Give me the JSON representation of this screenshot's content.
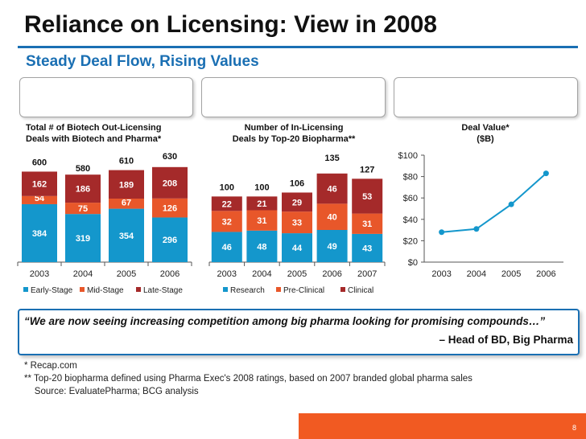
{
  "page": {
    "title": "Reliance on Licensing: View in 2008",
    "subtitle": "Steady Deal Flow, Rising Values",
    "quote": {
      "text": "We are now seeing increasing competition among big pharma looking for promising compounds…",
      "open_mark": "“",
      "close_mark": "”",
      "attribution": "– Head of BD, Big Pharma"
    },
    "footnotes": [
      "*  Recap.com",
      "** Top-20 biopharma defined using Pharma Exec's 2008 ratings, based on 2007 branded global pharma sales",
      "    Source: EvaluatePharma; BCG analysis"
    ],
    "page_number": "8"
  },
  "colors": {
    "early": "#1497cc",
    "mid": "#e8572a",
    "late": "#a52a2a",
    "line": "#1497cc",
    "accent_blue": "#1a6fb3",
    "orange": "#f15a22"
  },
  "chart_data": [
    {
      "type": "bar",
      "stacked": true,
      "title_lines": [
        "Total # of Biotech Out-Licensing",
        "Deals with Biotech and Pharma*"
      ],
      "categories": [
        "2003",
        "2004",
        "2005",
        "2006"
      ],
      "series": [
        {
          "name": "Early-Stage",
          "values": [
            384,
            319,
            354,
            296
          ]
        },
        {
          "name": "Mid-Stage",
          "values": [
            54,
            75,
            67,
            126
          ]
        },
        {
          "name": "Late-Stage",
          "values": [
            162,
            186,
            189,
            208
          ]
        }
      ],
      "totals": [
        600,
        580,
        610,
        630
      ]
    },
    {
      "type": "bar",
      "stacked": true,
      "title_lines": [
        "Number of In-Licensing",
        "Deals by Top-20 Biopharma**"
      ],
      "categories": [
        "2003",
        "2004",
        "2005",
        "2006",
        "2007"
      ],
      "series": [
        {
          "name": "Research",
          "values": [
            46,
            48,
            44,
            49,
            43
          ]
        },
        {
          "name": "Pre-Clinical",
          "values": [
            32,
            31,
            33,
            40,
            31
          ]
        },
        {
          "name": "Clinical",
          "values": [
            22,
            21,
            29,
            46,
            53
          ]
        }
      ],
      "totals": [
        100,
        100,
        106,
        135,
        127
      ]
    },
    {
      "type": "line",
      "title_lines": [
        "Deal Value*",
        "($B)"
      ],
      "x": [
        "2003",
        "2004",
        "2005",
        "2006"
      ],
      "series": [
        {
          "name": "Deal Value",
          "values": [
            28,
            31,
            54,
            83
          ]
        }
      ],
      "ylim": [
        0,
        100
      ],
      "yticks": [
        "$0",
        "$20",
        "$40",
        "$60",
        "$80",
        "$100"
      ]
    }
  ]
}
